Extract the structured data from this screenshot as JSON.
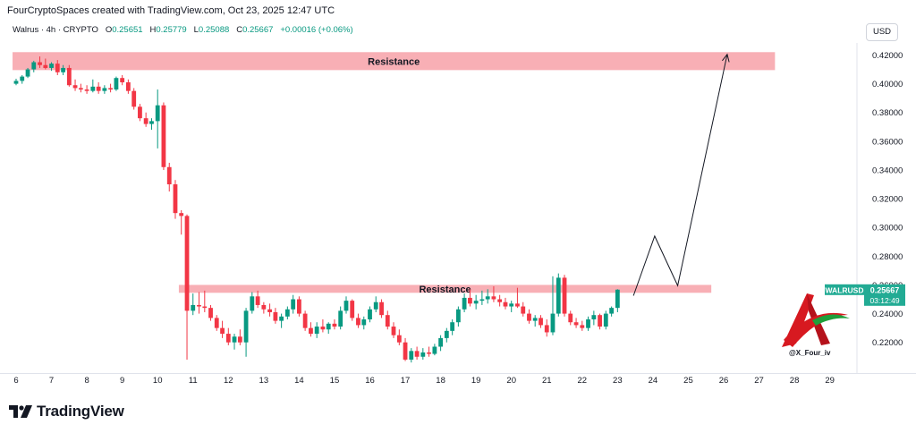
{
  "header": {
    "caption": "FourCryptoSpaces created with TradingView.com, Oct 23, 2025 12:47 UTC"
  },
  "legend": {
    "symbol": "Walrus · 4h · CRYPTO",
    "open_label": "O",
    "open": "0.25651",
    "high_label": "H",
    "high": "0.25779",
    "low_label": "L",
    "low": "0.25088",
    "close_label": "C",
    "close": "0.25667",
    "change": "+0.00016 (+0.06%)"
  },
  "currency_button": "USD",
  "brand": {
    "name": "TradingView"
  },
  "watermark": {
    "handle": "@X_Four_iv"
  },
  "colors": {
    "up": "#089981",
    "down": "#f23645",
    "zone": "#f7a1a8",
    "price_tag": "#22ab94"
  },
  "chart_data": {
    "type": "candlestick",
    "series_name": "WALRUSD",
    "ylim": [
      0.205,
      0.43
    ],
    "y_ticks": [
      "0.42000",
      "0.40000",
      "0.38000",
      "0.36000",
      "0.34000",
      "0.32000",
      "0.30000",
      "0.28000",
      "0.26000",
      "0.24000",
      "0.22000"
    ],
    "x_ticks": [
      "6",
      "7",
      "8",
      "9",
      "10",
      "11",
      "12",
      "13",
      "14",
      "15",
      "16",
      "17",
      "18",
      "19",
      "20",
      "21",
      "22",
      "23",
      "24",
      "25",
      "26",
      "27",
      "28",
      "29"
    ],
    "last_price_label": "WALRUSD",
    "last_price": "0.25667",
    "countdown": "03:12:49",
    "zones": [
      {
        "label": "Resistance",
        "day_from": 5.9,
        "day_to": 27.45,
        "low": 0.4095,
        "high": 0.422
      },
      {
        "label": "Resistance",
        "day_from": 10.6,
        "day_to": 25.65,
        "low": 0.2545,
        "high": 0.26
      }
    ],
    "projection": [
      {
        "day": 23.45,
        "price": 0.2525
      },
      {
        "day": 24.05,
        "price": 0.294
      },
      {
        "day": 24.7,
        "price": 0.2595
      },
      {
        "day": 26.1,
        "price": 0.4205
      }
    ],
    "candles": [
      {
        "d": 6.0,
        "o": 0.4,
        "h": 0.4035,
        "l": 0.399,
        "c": 0.402
      },
      {
        "d": 6.17,
        "o": 0.402,
        "h": 0.406,
        "l": 0.4,
        "c": 0.405
      },
      {
        "d": 6.33,
        "o": 0.405,
        "h": 0.411,
        "l": 0.404,
        "c": 0.41
      },
      {
        "d": 6.5,
        "o": 0.41,
        "h": 0.416,
        "l": 0.408,
        "c": 0.415
      },
      {
        "d": 6.67,
        "o": 0.415,
        "h": 0.419,
        "l": 0.411,
        "c": 0.413
      },
      {
        "d": 6.83,
        "o": 0.413,
        "h": 0.4175,
        "l": 0.41,
        "c": 0.411
      },
      {
        "d": 7.0,
        "o": 0.411,
        "h": 0.415,
        "l": 0.409,
        "c": 0.414
      },
      {
        "d": 7.17,
        "o": 0.414,
        "h": 0.4165,
        "l": 0.406,
        "c": 0.408
      },
      {
        "d": 7.33,
        "o": 0.408,
        "h": 0.413,
        "l": 0.406,
        "c": 0.411
      },
      {
        "d": 7.5,
        "o": 0.411,
        "h": 0.413,
        "l": 0.398,
        "c": 0.399
      },
      {
        "d": 7.67,
        "o": 0.399,
        "h": 0.403,
        "l": 0.395,
        "c": 0.397
      },
      {
        "d": 7.83,
        "o": 0.397,
        "h": 0.4,
        "l": 0.394,
        "c": 0.396
      },
      {
        "d": 8.0,
        "o": 0.396,
        "h": 0.399,
        "l": 0.393,
        "c": 0.395
      },
      {
        "d": 8.17,
        "o": 0.395,
        "h": 0.403,
        "l": 0.394,
        "c": 0.398
      },
      {
        "d": 8.33,
        "o": 0.398,
        "h": 0.401,
        "l": 0.393,
        "c": 0.395
      },
      {
        "d": 8.5,
        "o": 0.395,
        "h": 0.399,
        "l": 0.393,
        "c": 0.397
      },
      {
        "d": 8.67,
        "o": 0.397,
        "h": 0.4,
        "l": 0.394,
        "c": 0.396
      },
      {
        "d": 8.83,
        "o": 0.396,
        "h": 0.405,
        "l": 0.395,
        "c": 0.404
      },
      {
        "d": 9.0,
        "o": 0.404,
        "h": 0.406,
        "l": 0.399,
        "c": 0.401
      },
      {
        "d": 9.17,
        "o": 0.401,
        "h": 0.403,
        "l": 0.393,
        "c": 0.395
      },
      {
        "d": 9.33,
        "o": 0.395,
        "h": 0.397,
        "l": 0.382,
        "c": 0.384
      },
      {
        "d": 9.5,
        "o": 0.384,
        "h": 0.386,
        "l": 0.374,
        "c": 0.376
      },
      {
        "d": 9.67,
        "o": 0.376,
        "h": 0.38,
        "l": 0.37,
        "c": 0.372
      },
      {
        "d": 9.83,
        "o": 0.372,
        "h": 0.376,
        "l": 0.368,
        "c": 0.374
      },
      {
        "d": 10.0,
        "o": 0.374,
        "h": 0.396,
        "l": 0.355,
        "c": 0.385
      },
      {
        "d": 10.17,
        "o": 0.385,
        "h": 0.387,
        "l": 0.34,
        "c": 0.342
      },
      {
        "d": 10.33,
        "o": 0.342,
        "h": 0.345,
        "l": 0.325,
        "c": 0.33
      },
      {
        "d": 10.5,
        "o": 0.33,
        "h": 0.333,
        "l": 0.306,
        "c": 0.31
      },
      {
        "d": 10.67,
        "o": 0.31,
        "h": 0.312,
        "l": 0.295,
        "c": 0.308
      },
      {
        "d": 10.83,
        "o": 0.308,
        "h": 0.309,
        "l": 0.208,
        "c": 0.242
      },
      {
        "d": 11.0,
        "o": 0.242,
        "h": 0.254,
        "l": 0.239,
        "c": 0.246
      },
      {
        "d": 11.17,
        "o": 0.246,
        "h": 0.255,
        "l": 0.24,
        "c": 0.245
      },
      {
        "d": 11.33,
        "o": 0.245,
        "h": 0.256,
        "l": 0.241,
        "c": 0.244
      },
      {
        "d": 11.5,
        "o": 0.244,
        "h": 0.246,
        "l": 0.235,
        "c": 0.237
      },
      {
        "d": 11.67,
        "o": 0.237,
        "h": 0.239,
        "l": 0.228,
        "c": 0.23
      },
      {
        "d": 11.83,
        "o": 0.23,
        "h": 0.235,
        "l": 0.223,
        "c": 0.226
      },
      {
        "d": 12.0,
        "o": 0.226,
        "h": 0.23,
        "l": 0.218,
        "c": 0.22
      },
      {
        "d": 12.17,
        "o": 0.22,
        "h": 0.226,
        "l": 0.215,
        "c": 0.224
      },
      {
        "d": 12.33,
        "o": 0.224,
        "h": 0.229,
        "l": 0.218,
        "c": 0.22
      },
      {
        "d": 12.5,
        "o": 0.22,
        "h": 0.244,
        "l": 0.21,
        "c": 0.242
      },
      {
        "d": 12.67,
        "o": 0.242,
        "h": 0.255,
        "l": 0.24,
        "c": 0.252
      },
      {
        "d": 12.83,
        "o": 0.252,
        "h": 0.256,
        "l": 0.244,
        "c": 0.246
      },
      {
        "d": 13.0,
        "o": 0.246,
        "h": 0.248,
        "l": 0.24,
        "c": 0.243
      },
      {
        "d": 13.17,
        "o": 0.243,
        "h": 0.247,
        "l": 0.238,
        "c": 0.241
      },
      {
        "d": 13.33,
        "o": 0.241,
        "h": 0.244,
        "l": 0.233,
        "c": 0.235
      },
      {
        "d": 13.5,
        "o": 0.235,
        "h": 0.24,
        "l": 0.23,
        "c": 0.238
      },
      {
        "d": 13.67,
        "o": 0.238,
        "h": 0.245,
        "l": 0.236,
        "c": 0.243
      },
      {
        "d": 13.83,
        "o": 0.243,
        "h": 0.253,
        "l": 0.24,
        "c": 0.25
      },
      {
        "d": 14.0,
        "o": 0.25,
        "h": 0.252,
        "l": 0.238,
        "c": 0.24
      },
      {
        "d": 14.17,
        "o": 0.24,
        "h": 0.242,
        "l": 0.228,
        "c": 0.23
      },
      {
        "d": 14.33,
        "o": 0.23,
        "h": 0.234,
        "l": 0.224,
        "c": 0.226
      },
      {
        "d": 14.5,
        "o": 0.226,
        "h": 0.234,
        "l": 0.223,
        "c": 0.231
      },
      {
        "d": 14.67,
        "o": 0.231,
        "h": 0.236,
        "l": 0.227,
        "c": 0.229
      },
      {
        "d": 14.83,
        "o": 0.229,
        "h": 0.234,
        "l": 0.226,
        "c": 0.233
      },
      {
        "d": 15.0,
        "o": 0.233,
        "h": 0.236,
        "l": 0.229,
        "c": 0.231
      },
      {
        "d": 15.17,
        "o": 0.231,
        "h": 0.245,
        "l": 0.229,
        "c": 0.242
      },
      {
        "d": 15.33,
        "o": 0.242,
        "h": 0.252,
        "l": 0.24,
        "c": 0.249
      },
      {
        "d": 15.5,
        "o": 0.249,
        "h": 0.25,
        "l": 0.235,
        "c": 0.237
      },
      {
        "d": 15.67,
        "o": 0.237,
        "h": 0.24,
        "l": 0.23,
        "c": 0.232
      },
      {
        "d": 15.83,
        "o": 0.232,
        "h": 0.238,
        "l": 0.229,
        "c": 0.236
      },
      {
        "d": 16.0,
        "o": 0.236,
        "h": 0.245,
        "l": 0.234,
        "c": 0.243
      },
      {
        "d": 16.17,
        "o": 0.243,
        "h": 0.252,
        "l": 0.241,
        "c": 0.248
      },
      {
        "d": 16.33,
        "o": 0.248,
        "h": 0.25,
        "l": 0.237,
        "c": 0.239
      },
      {
        "d": 16.5,
        "o": 0.239,
        "h": 0.242,
        "l": 0.229,
        "c": 0.231
      },
      {
        "d": 16.67,
        "o": 0.231,
        "h": 0.234,
        "l": 0.223,
        "c": 0.225
      },
      {
        "d": 16.83,
        "o": 0.225,
        "h": 0.229,
        "l": 0.218,
        "c": 0.22
      },
      {
        "d": 17.0,
        "o": 0.22,
        "h": 0.223,
        "l": 0.207,
        "c": 0.208
      },
      {
        "d": 17.17,
        "o": 0.208,
        "h": 0.216,
        "l": 0.206,
        "c": 0.214
      },
      {
        "d": 17.33,
        "o": 0.214,
        "h": 0.217,
        "l": 0.208,
        "c": 0.21
      },
      {
        "d": 17.5,
        "o": 0.21,
        "h": 0.216,
        "l": 0.208,
        "c": 0.213
      },
      {
        "d": 17.67,
        "o": 0.213,
        "h": 0.217,
        "l": 0.21,
        "c": 0.212
      },
      {
        "d": 17.83,
        "o": 0.212,
        "h": 0.219,
        "l": 0.211,
        "c": 0.217
      },
      {
        "d": 18.0,
        "o": 0.217,
        "h": 0.225,
        "l": 0.214,
        "c": 0.223
      },
      {
        "d": 18.17,
        "o": 0.223,
        "h": 0.23,
        "l": 0.22,
        "c": 0.228
      },
      {
        "d": 18.33,
        "o": 0.228,
        "h": 0.236,
        "l": 0.225,
        "c": 0.234
      },
      {
        "d": 18.5,
        "o": 0.234,
        "h": 0.245,
        "l": 0.231,
        "c": 0.243
      },
      {
        "d": 18.67,
        "o": 0.243,
        "h": 0.254,
        "l": 0.241,
        "c": 0.251
      },
      {
        "d": 18.83,
        "o": 0.251,
        "h": 0.257,
        "l": 0.245,
        "c": 0.247
      },
      {
        "d": 19.0,
        "o": 0.247,
        "h": 0.253,
        "l": 0.243,
        "c": 0.249
      },
      {
        "d": 19.17,
        "o": 0.249,
        "h": 0.256,
        "l": 0.246,
        "c": 0.25
      },
      {
        "d": 19.33,
        "o": 0.25,
        "h": 0.257,
        "l": 0.247,
        "c": 0.252
      },
      {
        "d": 19.5,
        "o": 0.252,
        "h": 0.259,
        "l": 0.248,
        "c": 0.25
      },
      {
        "d": 19.67,
        "o": 0.25,
        "h": 0.253,
        "l": 0.245,
        "c": 0.248
      },
      {
        "d": 19.83,
        "o": 0.248,
        "h": 0.251,
        "l": 0.243,
        "c": 0.245
      },
      {
        "d": 20.0,
        "o": 0.245,
        "h": 0.249,
        "l": 0.241,
        "c": 0.247
      },
      {
        "d": 20.17,
        "o": 0.247,
        "h": 0.258,
        "l": 0.244,
        "c": 0.245
      },
      {
        "d": 20.33,
        "o": 0.245,
        "h": 0.248,
        "l": 0.238,
        "c": 0.24
      },
      {
        "d": 20.5,
        "o": 0.24,
        "h": 0.243,
        "l": 0.233,
        "c": 0.235
      },
      {
        "d": 20.67,
        "o": 0.235,
        "h": 0.239,
        "l": 0.231,
        "c": 0.237
      },
      {
        "d": 20.83,
        "o": 0.237,
        "h": 0.239,
        "l": 0.23,
        "c": 0.232
      },
      {
        "d": 21.0,
        "o": 0.232,
        "h": 0.236,
        "l": 0.224,
        "c": 0.227
      },
      {
        "d": 21.17,
        "o": 0.227,
        "h": 0.266,
        "l": 0.225,
        "c": 0.24
      },
      {
        "d": 21.33,
        "o": 0.24,
        "h": 0.268,
        "l": 0.238,
        "c": 0.265
      },
      {
        "d": 21.5,
        "o": 0.265,
        "h": 0.267,
        "l": 0.238,
        "c": 0.24
      },
      {
        "d": 21.67,
        "o": 0.24,
        "h": 0.242,
        "l": 0.232,
        "c": 0.234
      },
      {
        "d": 21.83,
        "o": 0.234,
        "h": 0.237,
        "l": 0.23,
        "c": 0.232
      },
      {
        "d": 22.0,
        "o": 0.232,
        "h": 0.235,
        "l": 0.228,
        "c": 0.23
      },
      {
        "d": 22.17,
        "o": 0.23,
        "h": 0.238,
        "l": 0.228,
        "c": 0.236
      },
      {
        "d": 22.33,
        "o": 0.236,
        "h": 0.242,
        "l": 0.232,
        "c": 0.239
      },
      {
        "d": 22.5,
        "o": 0.239,
        "h": 0.24,
        "l": 0.229,
        "c": 0.231
      },
      {
        "d": 22.67,
        "o": 0.231,
        "h": 0.242,
        "l": 0.229,
        "c": 0.24
      },
      {
        "d": 22.83,
        "o": 0.24,
        "h": 0.245,
        "l": 0.238,
        "c": 0.244
      },
      {
        "d": 23.0,
        "o": 0.244,
        "h": 0.257,
        "l": 0.241,
        "c": 0.2567
      }
    ]
  }
}
